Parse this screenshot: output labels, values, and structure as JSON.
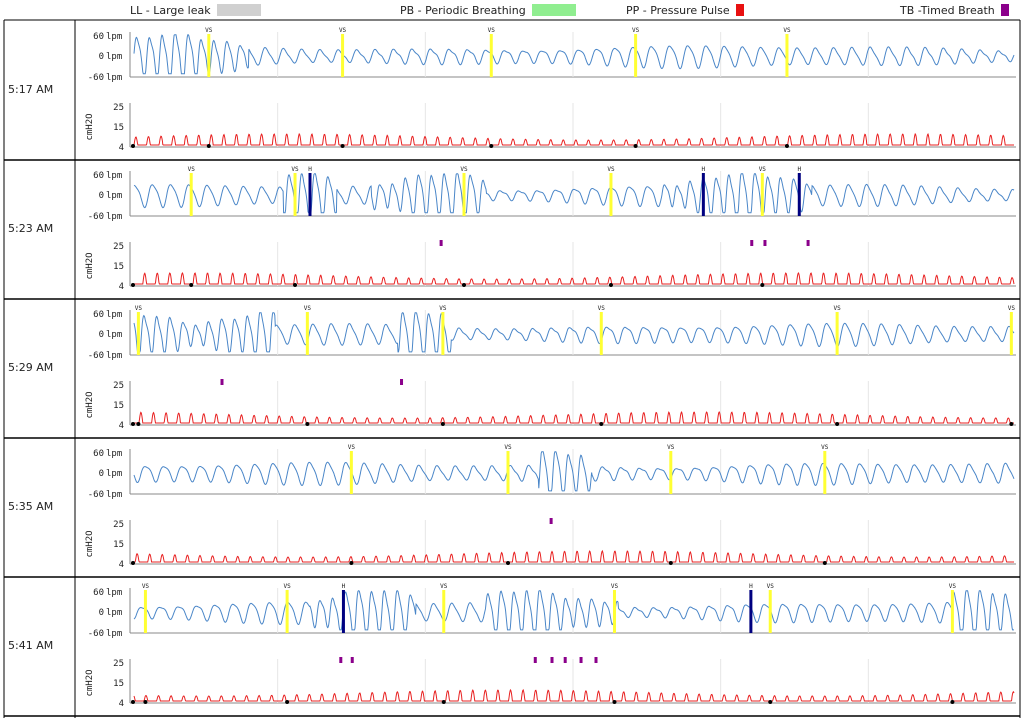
{
  "legend": {
    "items": [
      {
        "key": "LL",
        "label": "LL - Large leak",
        "color": "#d0d0d0"
      },
      {
        "key": "PB",
        "label": "PB - Periodic Breathing",
        "color": "#90ee90"
      },
      {
        "key": "PP",
        "label": "PP - Pressure Pulse",
        "color": "#e81010"
      },
      {
        "key": "TB",
        "label": "TB -Timed Breath",
        "color": "#8b008b"
      }
    ]
  },
  "chart_data": {
    "type": "line",
    "flow_axis": {
      "unit": "lpm",
      "ticks": [
        60,
        0,
        -60
      ],
      "tick_labels": [
        "60 lpm",
        "0 lpm",
        "-60 lpm"
      ]
    },
    "pressure_axis": {
      "unit": "cmH2O",
      "ticks": [
        "25",
        "15",
        "4"
      ]
    },
    "event_labels": {
      "vs": "VS",
      "h": "H"
    },
    "colors": {
      "flow": "#4a86c8",
      "pressure": "#e82020",
      "vs": "#ffff33",
      "h": "#000080",
      "tb": "#8b008b",
      "marker": "#000000"
    },
    "strips": [
      {
        "time": "5:17 AM",
        "vs_events": [
          0.085,
          0.237,
          0.406,
          0.57,
          0.742
        ],
        "h_events": [],
        "tb_events": [],
        "irregular": [
          [
            0.0,
            0.13
          ]
        ]
      },
      {
        "time": "5:23 AM",
        "vs_events": [
          0.065,
          0.183,
          0.375,
          0.542,
          0.714
        ],
        "h_events": [
          0.2,
          0.647,
          0.756
        ],
        "tb_events": [
          0.349,
          0.702,
          0.717,
          0.766
        ],
        "irregular": [
          [
            0.17,
            0.23
          ],
          [
            0.27,
            0.4
          ],
          [
            0.6,
            0.77
          ]
        ]
      },
      {
        "time": "5:29 AM",
        "vs_events": [
          0.005,
          0.197,
          0.351,
          0.531,
          0.799,
          0.997
        ],
        "h_events": [],
        "tb_events": [
          0.1,
          0.304
        ],
        "irregular": [
          [
            0.0,
            0.16
          ],
          [
            0.3,
            0.36
          ]
        ]
      },
      {
        "time": "5:35 AM",
        "vs_events": [
          0.247,
          0.425,
          0.61,
          0.785
        ],
        "h_events": [],
        "tb_events": [
          0.474
        ],
        "irregular": [
          [
            0.46,
            0.52
          ]
        ]
      },
      {
        "time": "5:41 AM",
        "vs_events": [
          0.013,
          0.174,
          0.352,
          0.546,
          0.723,
          0.93
        ],
        "h_events": [
          0.238,
          0.701
        ],
        "tb_events": [
          0.235,
          0.248,
          0.456,
          0.475,
          0.49,
          0.508,
          0.525
        ],
        "irregular": [
          [
            0.2,
            0.32
          ],
          [
            0.4,
            0.55
          ],
          [
            0.93,
            1.0
          ]
        ]
      }
    ]
  }
}
